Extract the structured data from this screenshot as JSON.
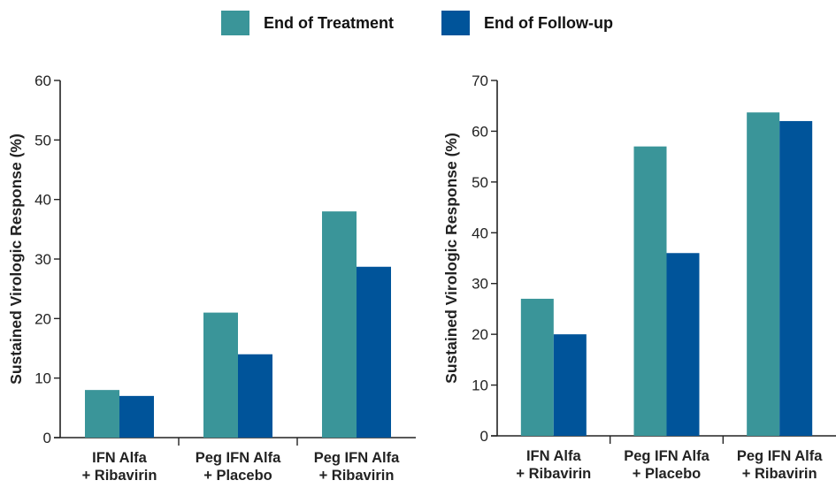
{
  "legend": {
    "items": [
      {
        "label": "End of Treatment",
        "color": "#3a9599"
      },
      {
        "label": "End of Follow-up",
        "color": "#00549a"
      }
    ]
  },
  "chart_data": [
    {
      "type": "bar",
      "categories": [
        [
          "IFN Alfa",
          "+ Ribavirin"
        ],
        [
          "Peg IFN Alfa",
          "+ Placebo"
        ],
        [
          "Peg IFN Alfa",
          "+ Ribavirin"
        ]
      ],
      "series": [
        {
          "name": "End of Treatment",
          "values": [
            8,
            21,
            38
          ]
        },
        {
          "name": "End of Follow-up",
          "values": [
            7,
            14,
            28.7
          ]
        }
      ],
      "ylabel": "Sustained Virologic Response (%)",
      "ylim": [
        0,
        60
      ],
      "yticks": [
        0,
        10,
        20,
        30,
        40,
        50,
        60
      ],
      "legend": "top-center",
      "grid": false
    },
    {
      "type": "bar",
      "categories": [
        [
          "IFN Alfa",
          "+ Ribavirin"
        ],
        [
          "Peg IFN Alfa",
          "+ Placebo"
        ],
        [
          "Peg IFN Alfa",
          "+ Ribavirin"
        ]
      ],
      "series": [
        {
          "name": "End of Treatment",
          "values": [
            27,
            57,
            63.7
          ]
        },
        {
          "name": "End of Follow-up",
          "values": [
            20,
            36,
            62
          ]
        }
      ],
      "ylabel": "Sustained Virologic Response (%)",
      "ylim": [
        0,
        70
      ],
      "yticks": [
        0,
        10,
        20,
        30,
        40,
        50,
        60,
        70
      ],
      "legend": "top-center",
      "grid": false
    }
  ]
}
